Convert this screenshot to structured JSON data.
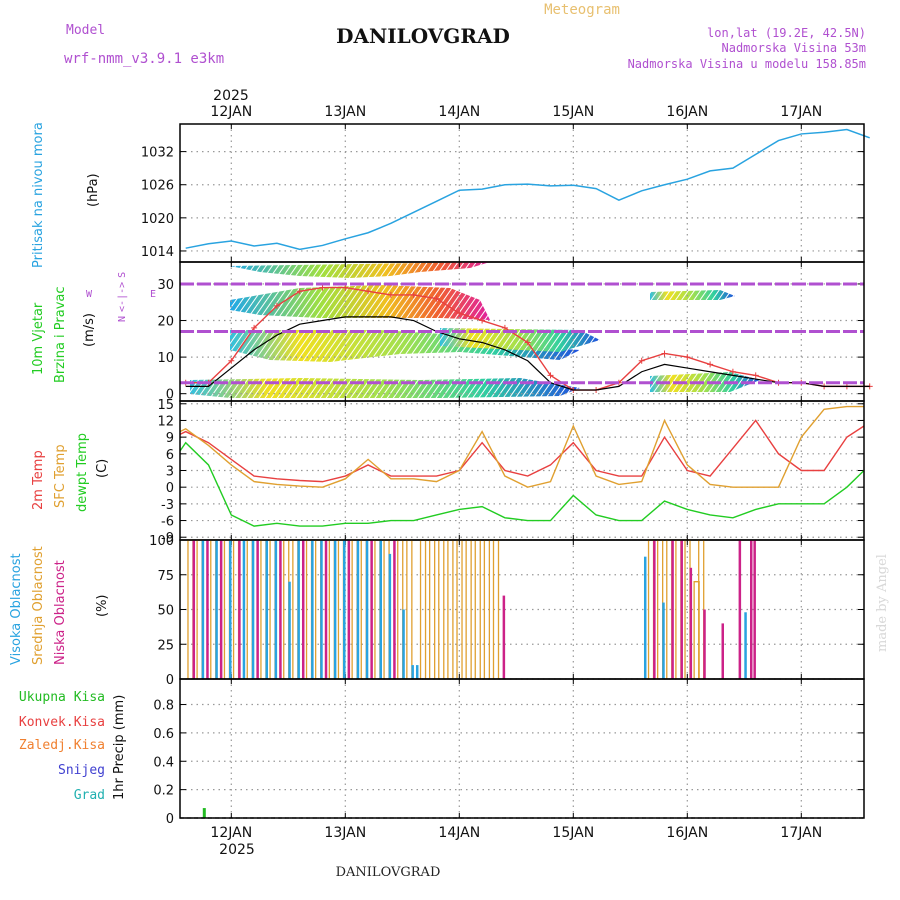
{
  "header": {
    "model_label": "Model",
    "model_name": "wrf-nmm_v3.9.1 e3km",
    "title": "DANILOVGRAD",
    "meteogram_label": "Meteogram",
    "lonlat": "lon,lat (19.2E, 42.5N)",
    "altitude": "Nadmorska Visina 53m",
    "model_altitude": "Nadmorska Visina u modelu 158.85m",
    "year_top": "2025",
    "year_bottom": "2025",
    "footer": "DANILOVGRAD",
    "watermark": "made by Angel"
  },
  "colors": {
    "pressure": "#29a3e0",
    "wind_label": "#22cc22",
    "temp2m": "#e84040",
    "sfc": "#e0a030",
    "dewpt": "#22cc22",
    "visoka": "#29a3e0",
    "srednja": "#e0a030",
    "niska": "#cc2288",
    "violet": "#b050d0",
    "precip_green": "#22bb22"
  },
  "chart_data": [
    {
      "name": "pressure",
      "type": "line",
      "ylabel_name": "Pritisak na nivou mora",
      "ylabel_unit": "(hPa)",
      "yticks": [
        "1014",
        "1020",
        "1026",
        "1032"
      ],
      "ylim": [
        1012,
        1037
      ],
      "x_unit": "days since 11 JAN 2025 00:00",
      "x": [
        0.6,
        0.8,
        1.0,
        1.2,
        1.4,
        1.6,
        1.8,
        2.0,
        2.2,
        2.4,
        2.6,
        2.8,
        3.0,
        3.2,
        3.4,
        3.6,
        3.8,
        4.0,
        4.2,
        4.4,
        4.6,
        4.8,
        5.0,
        5.2,
        5.4,
        5.6,
        5.8,
        6.0,
        6.2,
        6.4,
        6.6
      ],
      "values": [
        1014.5,
        1015.3,
        1015.8,
        1014.9,
        1015.4,
        1014.3,
        1015.0,
        1016.2,
        1017.3,
        1019.0,
        1021.0,
        1023.0,
        1025.0,
        1025.2,
        1026.0,
        1026.1,
        1025.8,
        1025.9,
        1025.3,
        1023.2,
        1024.9,
        1026.0,
        1027.0,
        1028.5,
        1029.0,
        1031.5,
        1034.0,
        1035.2,
        1035.5,
        1036.0,
        1034.5
      ]
    },
    {
      "name": "wind",
      "type": "line",
      "ylabel_name": "10m Vjetar",
      "ylabel_name2": "Brzina i Pravac",
      "ylabel_unit": "(m/s)",
      "compass": [
        "N",
        "<-|->",
        "S"
      ],
      "compass_w": "W",
      "compass_e": "E",
      "yticks": [
        "0",
        "10",
        "20",
        "30"
      ],
      "ylim": [
        -2,
        36
      ],
      "x": [
        0.6,
        0.8,
        1.0,
        1.2,
        1.4,
        1.6,
        1.8,
        2.0,
        2.2,
        2.4,
        2.6,
        2.8,
        3.0,
        3.2,
        3.4,
        3.6,
        3.8,
        4.0,
        4.2,
        4.4,
        4.6,
        4.8,
        5.0,
        5.2,
        5.4,
        5.6,
        5.8,
        6.0,
        6.2,
        6.4,
        6.6
      ],
      "mean_speed": [
        2,
        2,
        7,
        12,
        16,
        19,
        20,
        21,
        21,
        21,
        20,
        17,
        15,
        14,
        12,
        9,
        3,
        1,
        1,
        2,
        6,
        8,
        7,
        6,
        5,
        4,
        3,
        3,
        2,
        2,
        2
      ],
      "gust_speed": [
        3,
        3,
        9,
        18,
        24,
        28,
        29,
        29,
        28,
        27,
        27,
        26,
        22,
        20,
        18,
        14,
        5,
        1,
        1,
        3,
        9,
        11,
        10,
        8,
        6,
        5,
        3,
        3,
        2,
        2,
        2
      ]
    },
    {
      "name": "temperature",
      "type": "line",
      "ylabel_names": [
        "2m Temp",
        "SFC Temp",
        "dewpt Temp"
      ],
      "ylabel_unit": "(C)",
      "yticks": [
        "-9",
        "-6",
        "-3",
        "0",
        "3",
        "6",
        "9",
        "12",
        "15"
      ],
      "ylim": [
        -9.5,
        15.5
      ],
      "x": [
        0.55,
        0.6,
        0.8,
        1.0,
        1.2,
        1.4,
        1.6,
        1.8,
        2.0,
        2.2,
        2.4,
        2.6,
        2.8,
        3.0,
        3.2,
        3.4,
        3.6,
        3.8,
        4.0,
        4.2,
        4.4,
        4.6,
        4.8,
        5.0,
        5.2,
        5.4,
        5.6,
        5.8,
        6.0,
        6.2,
        6.4,
        6.55
      ],
      "series": [
        {
          "name": "2m Temp",
          "values": [
            9.5,
            10,
            8,
            5,
            2,
            1.5,
            1.2,
            1,
            2,
            4,
            2,
            2,
            2,
            3,
            8,
            3,
            2,
            4,
            8,
            3,
            2,
            2,
            9,
            3,
            2,
            7,
            12,
            6,
            3,
            3,
            9,
            11
          ]
        },
        {
          "name": "SFC Temp",
          "values": [
            10,
            10.5,
            7.5,
            4,
            1,
            0.5,
            0.2,
            0,
            1.5,
            5,
            1.5,
            1.5,
            1,
            3,
            10,
            2,
            0,
            1,
            11,
            2,
            0.5,
            1,
            12,
            4,
            0.5,
            0,
            0,
            0,
            9,
            14,
            14.5,
            14.5
          ]
        },
        {
          "name": "dewpt Temp",
          "values": [
            6.5,
            8,
            4,
            -5,
            -7,
            -6.5,
            -7,
            -7,
            -6.5,
            -6.5,
            -6,
            -6,
            -5,
            -4,
            -3.5,
            -5.5,
            -6,
            -6,
            -1.5,
            -5,
            -6,
            -6,
            -2.5,
            -4,
            -5,
            -5.5,
            -4,
            -3,
            -3,
            -3,
            0,
            3
          ]
        }
      ]
    },
    {
      "name": "cloud",
      "type": "bar",
      "ylabel_names": [
        "Visoka Oblacnost",
        "Srednja Oblacnost",
        "Niska Oblacnost"
      ],
      "ylabel_unit": "(%)",
      "yticks": [
        "0",
        "25",
        "50",
        "75",
        "100"
      ],
      "ylim": [
        0,
        100
      ],
      "bars": [
        {
          "x": 0.62,
          "layer": "srednja",
          "v": 100
        },
        {
          "x": 0.66,
          "layer": "niska",
          "v": 100
        },
        {
          "x": 0.7,
          "layer": "srednja",
          "v": 100
        },
        {
          "x": 0.74,
          "layer": "visoka",
          "v": 100
        },
        {
          "x": 0.78,
          "layer": "niska",
          "v": 100
        },
        {
          "x": 0.82,
          "layer": "srednja",
          "v": 100
        },
        {
          "x": 0.86,
          "layer": "visoka",
          "v": 100
        },
        {
          "x": 0.9,
          "layer": "niska",
          "v": 100
        },
        {
          "x": 0.94,
          "layer": "srednja",
          "v": 100
        },
        {
          "x": 0.98,
          "layer": "visoka",
          "v": 100
        },
        {
          "x": 1.02,
          "layer": "srednja",
          "v": 100
        },
        {
          "x": 1.06,
          "layer": "niska",
          "v": 100
        },
        {
          "x": 1.1,
          "layer": "visoka",
          "v": 100
        },
        {
          "x": 1.14,
          "layer": "srednja",
          "v": 100
        },
        {
          "x": 1.18,
          "layer": "visoka",
          "v": 100
        },
        {
          "x": 1.22,
          "layer": "niska",
          "v": 100
        },
        {
          "x": 1.26,
          "layer": "srednja",
          "v": 100
        },
        {
          "x": 1.3,
          "layer": "visoka",
          "v": 100
        },
        {
          "x": 1.34,
          "layer": "srednja",
          "v": 100
        },
        {
          "x": 1.38,
          "layer": "visoka",
          "v": 100
        },
        {
          "x": 1.42,
          "layer": "niska",
          "v": 100
        },
        {
          "x": 1.46,
          "layer": "srednja",
          "v": 100
        },
        {
          "x": 1.5,
          "layer": "visoka",
          "v": 70
        },
        {
          "x": 1.54,
          "layer": "srednja",
          "v": 100
        },
        {
          "x": 1.58,
          "layer": "visoka",
          "v": 100
        },
        {
          "x": 1.62,
          "layer": "niska",
          "v": 100
        },
        {
          "x": 1.66,
          "layer": "srednja",
          "v": 100
        },
        {
          "x": 1.7,
          "layer": "visoka",
          "v": 100
        },
        {
          "x": 1.74,
          "layer": "srednja",
          "v": 100
        },
        {
          "x": 1.78,
          "layer": "visoka",
          "v": 100
        },
        {
          "x": 1.82,
          "layer": "niska",
          "v": 100
        },
        {
          "x": 1.86,
          "layer": "srednja",
          "v": 100
        },
        {
          "x": 1.9,
          "layer": "visoka",
          "v": 100
        },
        {
          "x": 1.94,
          "layer": "srednja",
          "v": 100
        },
        {
          "x": 1.98,
          "layer": "visoka",
          "v": 100
        },
        {
          "x": 2.02,
          "layer": "niska",
          "v": 100
        },
        {
          "x": 2.06,
          "layer": "srednja",
          "v": 100
        },
        {
          "x": 2.1,
          "layer": "visoka",
          "v": 100
        },
        {
          "x": 2.14,
          "layer": "srednja",
          "v": 100
        },
        {
          "x": 2.18,
          "layer": "visoka",
          "v": 100
        },
        {
          "x": 2.22,
          "layer": "niska",
          "v": 100
        },
        {
          "x": 2.26,
          "layer": "srednja",
          "v": 100
        },
        {
          "x": 2.3,
          "layer": "visoka",
          "v": 100
        },
        {
          "x": 2.34,
          "layer": "srednja",
          "v": 100
        },
        {
          "x": 2.38,
          "layer": "visoka",
          "v": 90
        },
        {
          "x": 2.42,
          "layer": "niska",
          "v": 100
        },
        {
          "x": 2.46,
          "layer": "srednja",
          "v": 100
        },
        {
          "x": 2.5,
          "layer": "visoka",
          "v": 50
        },
        {
          "x": 2.54,
          "layer": "srednja",
          "v": 100
        },
        {
          "x": 2.58,
          "layer": "visoka",
          "v": 10
        },
        {
          "x": 2.62,
          "layer": "visoka",
          "v": 10
        },
        {
          "x": 2.66,
          "layer": "srednja",
          "v": 100
        },
        {
          "x": 2.74,
          "layer": "srednja",
          "v": 100
        },
        {
          "x": 2.82,
          "layer": "srednja",
          "v": 100
        },
        {
          "x": 2.9,
          "layer": "srednja",
          "v": 100
        },
        {
          "x": 2.98,
          "layer": "srednja",
          "v": 100
        },
        {
          "x": 3.06,
          "layer": "srednja",
          "v": 100
        },
        {
          "x": 3.14,
          "layer": "srednja",
          "v": 100
        },
        {
          "x": 3.22,
          "layer": "srednja",
          "v": 100
        },
        {
          "x": 3.3,
          "layer": "srednja",
          "v": 100
        },
        {
          "x": 3.38,
          "layer": "niska",
          "v": 60
        },
        {
          "x": 4.62,
          "layer": "visoka",
          "v": 88
        },
        {
          "x": 4.66,
          "layer": "srednja",
          "v": 100
        },
        {
          "x": 4.7,
          "layer": "niska",
          "v": 100
        },
        {
          "x": 4.74,
          "layer": "srednja",
          "v": 100
        },
        {
          "x": 4.78,
          "layer": "visoka",
          "v": 55
        },
        {
          "x": 4.82,
          "layer": "srednja",
          "v": 100
        },
        {
          "x": 4.86,
          "layer": "niska",
          "v": 100
        },
        {
          "x": 4.9,
          "layer": "srednja",
          "v": 100
        },
        {
          "x": 4.94,
          "layer": "niska",
          "v": 100
        },
        {
          "x": 4.98,
          "layer": "srednja",
          "v": 100
        },
        {
          "x": 5.02,
          "layer": "niska",
          "v": 80
        },
        {
          "x": 5.06,
          "layer": "srednja",
          "v": 70
        },
        {
          "x": 5.1,
          "layer": "srednja",
          "v": 100
        },
        {
          "x": 5.14,
          "layer": "niska",
          "v": 50
        },
        {
          "x": 5.3,
          "layer": "niska",
          "v": 40
        },
        {
          "x": 5.45,
          "layer": "niska",
          "v": 100
        },
        {
          "x": 5.5,
          "layer": "visoka",
          "v": 48
        },
        {
          "x": 5.55,
          "layer": "niska",
          "v": 100
        },
        {
          "x": 5.58,
          "layer": "niska",
          "v": 100
        }
      ]
    },
    {
      "name": "precip",
      "type": "bar",
      "ylabel_name": "1hr Precip",
      "ylabel_unit": "(mm)",
      "yticks": [
        "0",
        "0.2",
        "0.4",
        "0.6",
        "0.8"
      ],
      "ylim": [
        0,
        0.98
      ],
      "legend": [
        "Ukupna Kisa",
        "Konvek.Kisa",
        "Zaledj.Kisa",
        "Snijeg",
        "Grad"
      ],
      "legend_colors": [
        "#22bb22",
        "#e84040",
        "#f08030",
        "#4040d0",
        "#20b0b0"
      ],
      "bars": [
        {
          "x": 0.75,
          "v": 0.07
        }
      ]
    }
  ],
  "xaxis": {
    "ticks_top": [
      "12JAN",
      "13JAN",
      "14JAN",
      "15JAN",
      "16JAN",
      "17JAN"
    ],
    "ticks_bottom": [
      "12JAN",
      "13JAN",
      "14JAN",
      "15JAN",
      "16JAN",
      "17JAN"
    ],
    "tick_days": [
      1,
      2,
      3,
      4,
      5,
      6
    ],
    "xlim": [
      0.55,
      6.55
    ]
  }
}
